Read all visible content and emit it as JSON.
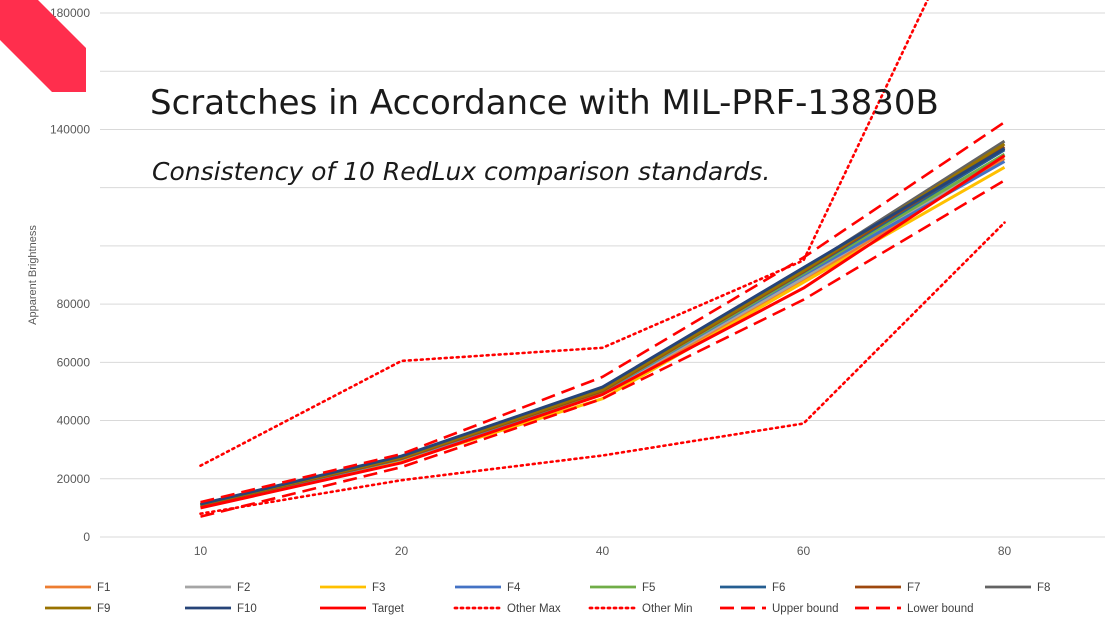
{
  "chart_data": {
    "type": "line",
    "title": "Scratches in Accordance with MIL-PRF-13830B",
    "subtitle": "Consistency of 10 RedLux comparison standards.",
    "xlabel": "",
    "ylabel": "Apparent Brightness",
    "categories": [
      "10",
      "20",
      "40",
      "60",
      "80"
    ],
    "ylim": [
      0,
      180000
    ],
    "yticks": [
      "0",
      "20000",
      "40000",
      "60000",
      "80000",
      "",
      "",
      "140000",
      "",
      "180000"
    ],
    "grid": true,
    "legend_position": "bottom",
    "series": [
      {
        "name": "F1",
        "color": "#ED7D31",
        "style": "solid",
        "values": [
          10500,
          26000,
          49000,
          88000,
          130000
        ]
      },
      {
        "name": "F2",
        "color": "#A5A5A5",
        "style": "solid",
        "values": [
          10800,
          26500,
          49500,
          89000,
          131000
        ]
      },
      {
        "name": "F3",
        "color": "#FFC000",
        "style": "solid",
        "values": [
          10200,
          25800,
          47500,
          87500,
          127000
        ]
      },
      {
        "name": "F4",
        "color": "#4472C4",
        "style": "solid",
        "values": [
          10600,
          26800,
          49800,
          90000,
          129000
        ]
      },
      {
        "name": "F5",
        "color": "#70AD47",
        "style": "solid",
        "values": [
          10700,
          27000,
          50000,
          90500,
          131500
        ]
      },
      {
        "name": "F6",
        "color": "#255E91",
        "style": "solid",
        "values": [
          11000,
          27200,
          50500,
          91000,
          133000
        ]
      },
      {
        "name": "F7",
        "color": "#9E480E",
        "style": "solid",
        "values": [
          10900,
          27000,
          50200,
          91200,
          134000
        ]
      },
      {
        "name": "F8",
        "color": "#636363",
        "style": "solid",
        "values": [
          11200,
          27500,
          50800,
          92000,
          136000
        ]
      },
      {
        "name": "F9",
        "color": "#997300",
        "style": "solid",
        "values": [
          11100,
          27300,
          50600,
          91500,
          135000
        ]
      },
      {
        "name": "F10",
        "color": "#264478",
        "style": "solid",
        "values": [
          11300,
          27800,
          51500,
          92500,
          133500
        ]
      },
      {
        "name": "Target",
        "color": "#FF0000",
        "style": "solid",
        "values": [
          10000,
          25500,
          49000,
          85500,
          131000
        ]
      },
      {
        "name": "Other Max",
        "color": "#FF0000",
        "style": "dotted",
        "values": [
          24500,
          60500,
          65000,
          95000,
          240000
        ]
      },
      {
        "name": "Other Min",
        "color": "#FF0000",
        "style": "dotted",
        "values": [
          8000,
          19500,
          28000,
          39000,
          108000
        ]
      },
      {
        "name": "Upper bound",
        "color": "#FF0000",
        "style": "dashed",
        "values": [
          12000,
          28500,
          55000,
          96000,
          142500
        ]
      },
      {
        "name": "Lower bound",
        "color": "#FF0000",
        "style": "dashed",
        "values": [
          7000,
          24000,
          47500,
          81500,
          122500
        ]
      }
    ]
  },
  "decor": {
    "corner_color": "#FF2E4D"
  }
}
